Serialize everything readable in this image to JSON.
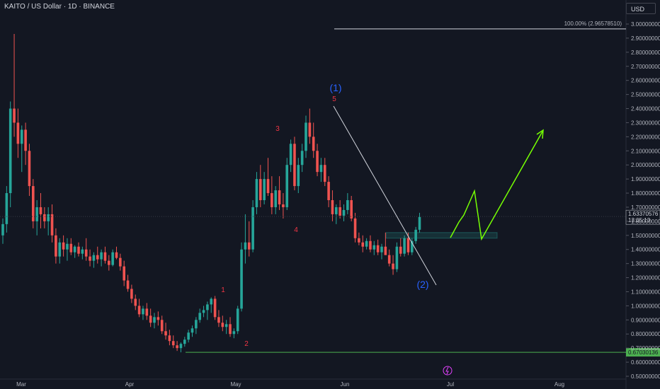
{
  "header": {
    "title": "KAITO / US Dollar · 1D · BINANCE",
    "currency": "USD"
  },
  "chart_data": {
    "type": "candlestick",
    "y_ticks": [
      "3.00000000",
      "2.90000000",
      "2.80000000",
      "2.70000000",
      "2.60000000",
      "2.50000000",
      "2.40000000",
      "2.30000000",
      "2.20000000",
      "2.10000000",
      "2.00000000",
      "1.90000000",
      "1.80000000",
      "1.70000000",
      "1.60000000",
      "1.50000000",
      "1.40000000",
      "1.30000000",
      "1.20000000",
      "1.10000000",
      "1.00000000",
      "0.90000000",
      "0.80000000",
      "0.70000000",
      "0.60000000",
      "0.50000000"
    ],
    "x_ticks": [
      "Mar",
      "Apr",
      "May",
      "Jun",
      "Jul",
      "Aug"
    ],
    "ylim": [
      0.5,
      3.05
    ],
    "fib_label": "100.00% (2.96578510)",
    "fib_level": 2.9657851,
    "support_level": 0.67030136,
    "support_label": "0.67030136",
    "current_price": "1.63370576",
    "countdown": "13:05:13",
    "current_price_value": 1.6337,
    "wave_labels": [
      {
        "text": "(1)",
        "color": "blue"
      },
      {
        "text": "5",
        "color": "red"
      },
      {
        "text": "3",
        "color": "red"
      },
      {
        "text": "4",
        "color": "red"
      },
      {
        "text": "1",
        "color": "red"
      },
      {
        "text": "2",
        "color": "red"
      },
      {
        "text": "(2)",
        "color": "blue"
      }
    ],
    "candles": [
      [
        1.5,
        1.62,
        1.44,
        1.58
      ],
      [
        1.58,
        1.85,
        1.52,
        1.8
      ],
      [
        1.8,
        2.45,
        1.7,
        2.4
      ],
      [
        2.4,
        2.93,
        2.2,
        2.3
      ],
      [
        2.3,
        2.4,
        2.05,
        2.15
      ],
      [
        2.15,
        2.28,
        1.95,
        2.25
      ],
      [
        2.25,
        2.3,
        2.0,
        2.1
      ],
      [
        2.1,
        2.15,
        1.78,
        1.85
      ],
      [
        1.85,
        1.9,
        1.55,
        1.6
      ],
      [
        1.6,
        1.75,
        1.5,
        1.7
      ],
      [
        1.7,
        1.8,
        1.55,
        1.65
      ],
      [
        1.65,
        1.7,
        1.55,
        1.6
      ],
      [
        1.6,
        1.7,
        1.5,
        1.65
      ],
      [
        1.65,
        1.72,
        1.45,
        1.5
      ],
      [
        1.5,
        1.55,
        1.3,
        1.35
      ],
      [
        1.35,
        1.48,
        1.3,
        1.45
      ],
      [
        1.45,
        1.5,
        1.35,
        1.4
      ],
      [
        1.4,
        1.48,
        1.32,
        1.44
      ],
      [
        1.44,
        1.48,
        1.36,
        1.38
      ],
      [
        1.38,
        1.43,
        1.34,
        1.42
      ],
      [
        1.42,
        1.45,
        1.35,
        1.37
      ],
      [
        1.37,
        1.42,
        1.33,
        1.4
      ],
      [
        1.4,
        1.48,
        1.32,
        1.35
      ],
      [
        1.35,
        1.4,
        1.28,
        1.32
      ],
      [
        1.32,
        1.38,
        1.27,
        1.36
      ],
      [
        1.36,
        1.42,
        1.3,
        1.33
      ],
      [
        1.33,
        1.4,
        1.28,
        1.38
      ],
      [
        1.38,
        1.42,
        1.3,
        1.32
      ],
      [
        1.32,
        1.36,
        1.25,
        1.29
      ],
      [
        1.29,
        1.4,
        1.28,
        1.38
      ],
      [
        1.38,
        1.42,
        1.33,
        1.34
      ],
      [
        1.34,
        1.37,
        1.25,
        1.28
      ],
      [
        1.28,
        1.32,
        1.14,
        1.18
      ],
      [
        1.18,
        1.22,
        1.1,
        1.12
      ],
      [
        1.12,
        1.15,
        1.02,
        1.05
      ],
      [
        1.05,
        1.08,
        0.97,
        1.0
      ],
      [
        1.0,
        1.05,
        0.92,
        0.94
      ],
      [
        0.94,
        1.0,
        0.9,
        0.98
      ],
      [
        0.98,
        1.02,
        0.9,
        0.93
      ],
      [
        0.93,
        0.98,
        0.85,
        0.88
      ],
      [
        0.88,
        0.95,
        0.84,
        0.92
      ],
      [
        0.92,
        0.96,
        0.86,
        0.9
      ],
      [
        0.9,
        0.93,
        0.8,
        0.82
      ],
      [
        0.82,
        0.88,
        0.76,
        0.79
      ],
      [
        0.79,
        0.83,
        0.72,
        0.75
      ],
      [
        0.75,
        0.79,
        0.7,
        0.72
      ],
      [
        0.72,
        0.75,
        0.68,
        0.7
      ],
      [
        0.7,
        0.74,
        0.67,
        0.73
      ],
      [
        0.73,
        0.78,
        0.71,
        0.76
      ],
      [
        0.76,
        0.83,
        0.74,
        0.81
      ],
      [
        0.81,
        0.86,
        0.78,
        0.84
      ],
      [
        0.84,
        0.92,
        0.8,
        0.9
      ],
      [
        0.9,
        0.98,
        0.88,
        0.95
      ],
      [
        0.95,
        1.0,
        0.92,
        0.97
      ],
      [
        0.97,
        1.03,
        0.9,
        1.01
      ],
      [
        1.01,
        1.06,
        0.95,
        1.05
      ],
      [
        1.05,
        1.07,
        0.9,
        0.92
      ],
      [
        0.92,
        0.97,
        0.85,
        0.88
      ],
      [
        0.88,
        0.93,
        0.82,
        0.85
      ],
      [
        0.85,
        0.9,
        0.8,
        0.87
      ],
      [
        0.87,
        0.92,
        0.78,
        0.8
      ],
      [
        0.8,
        0.84,
        0.77,
        0.82
      ],
      [
        0.82,
        1.0,
        0.8,
        0.98
      ],
      [
        0.98,
        1.45,
        0.96,
        1.4
      ],
      [
        1.4,
        1.65,
        1.3,
        1.45
      ],
      [
        1.45,
        1.6,
        1.35,
        1.4
      ],
      [
        1.4,
        1.75,
        1.38,
        1.7
      ],
      [
        1.7,
        1.95,
        1.65,
        1.9
      ],
      [
        1.9,
        2.0,
        1.7,
        1.75
      ],
      [
        1.75,
        1.95,
        1.72,
        1.9
      ],
      [
        1.9,
        2.05,
        1.78,
        1.8
      ],
      [
        1.8,
        1.92,
        1.65,
        1.7
      ],
      [
        1.7,
        1.85,
        1.65,
        1.82
      ],
      [
        1.82,
        1.92,
        1.68,
        1.72
      ],
      [
        1.72,
        1.8,
        1.62,
        1.7
      ],
      [
        1.7,
        2.05,
        1.68,
        2.0
      ],
      [
        2.0,
        2.18,
        1.95,
        2.15
      ],
      [
        2.15,
        2.2,
        1.82,
        1.85
      ],
      [
        1.85,
        2.05,
        1.8,
        2.0
      ],
      [
        2.0,
        2.15,
        1.95,
        2.1
      ],
      [
        2.1,
        2.35,
        2.05,
        2.3
      ],
      [
        2.3,
        2.4,
        2.15,
        2.2
      ],
      [
        2.2,
        2.3,
        2.05,
        2.1
      ],
      [
        2.1,
        2.15,
        1.92,
        1.95
      ],
      [
        1.95,
        2.05,
        1.88,
        2.0
      ],
      [
        2.0,
        2.05,
        1.85,
        1.88
      ],
      [
        1.88,
        1.92,
        1.7,
        1.75
      ],
      [
        1.75,
        1.82,
        1.6,
        1.65
      ],
      [
        1.65,
        1.72,
        1.58,
        1.7
      ],
      [
        1.7,
        1.75,
        1.62,
        1.64
      ],
      [
        1.64,
        1.72,
        1.6,
        1.68
      ],
      [
        1.68,
        1.8,
        1.65,
        1.75
      ],
      [
        1.75,
        1.78,
        1.6,
        1.62
      ],
      [
        1.62,
        1.66,
        1.45,
        1.48
      ],
      [
        1.48,
        1.52,
        1.43,
        1.45
      ],
      [
        1.45,
        1.5,
        1.38,
        1.42
      ],
      [
        1.42,
        1.48,
        1.4,
        1.46
      ],
      [
        1.46,
        1.5,
        1.38,
        1.4
      ],
      [
        1.4,
        1.46,
        1.36,
        1.43
      ],
      [
        1.43,
        1.47,
        1.36,
        1.38
      ],
      [
        1.38,
        1.44,
        1.33,
        1.42
      ],
      [
        1.42,
        1.52,
        1.38,
        1.36
      ],
      [
        1.36,
        1.4,
        1.28,
        1.3
      ],
      [
        1.3,
        1.36,
        1.22,
        1.26
      ],
      [
        1.26,
        1.45,
        1.24,
        1.42
      ],
      [
        1.42,
        1.48,
        1.35,
        1.37
      ],
      [
        1.37,
        1.5,
        1.35,
        1.48
      ],
      [
        1.48,
        1.52,
        1.36,
        1.38
      ],
      [
        1.38,
        1.48,
        1.36,
        1.46
      ],
      [
        1.46,
        1.56,
        1.44,
        1.54
      ],
      [
        1.54,
        1.66,
        1.52,
        1.63
      ]
    ],
    "projection": [
      [
        1.62,
        1.65
      ],
      [
        1.7,
        1.72
      ],
      [
        1.6,
        1.58
      ],
      [
        1.82,
        1.8
      ],
      [
        1.47,
        1.45
      ],
      [
        2.25,
        2.26
      ]
    ],
    "resistance_zone": [
      1.48,
      1.52
    ]
  }
}
